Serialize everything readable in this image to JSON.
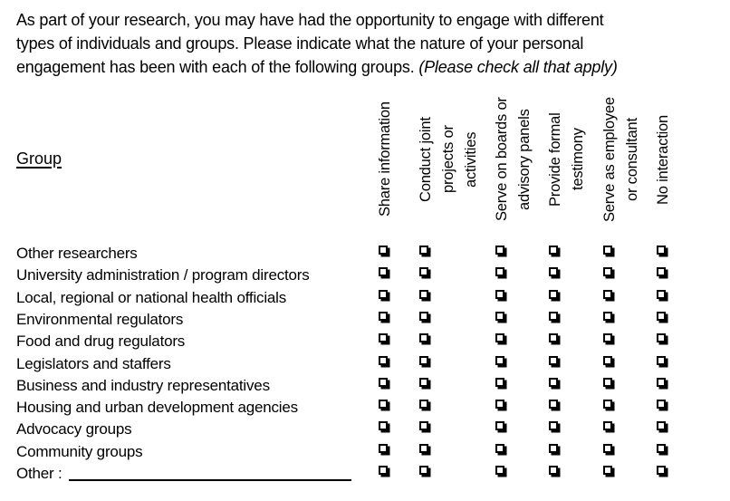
{
  "intro": {
    "line1": "As part of your research, you may have had the opportunity to engage with different",
    "line2": "types of individuals and groups. Please indicate what the nature of your personal",
    "line3_regular": "engagement has been with each of the following groups. ",
    "line3_italic": "(Please check all that apply)"
  },
  "table": {
    "group_header": "Group",
    "columns": [
      {
        "label": "Share information"
      },
      {
        "label": "Conduct joint\nprojects or\nactivities"
      },
      {
        "label": "Serve on boards or\nadvisory panels"
      },
      {
        "label": "Provide formal\ntestimony"
      },
      {
        "label": "Serve as employee\nor consultant"
      },
      {
        "label": "No interaction"
      }
    ],
    "rows": [
      {
        "label": "Other researchers"
      },
      {
        "label": "University administration / program directors"
      },
      {
        "label": "Local, regional or national health officials"
      },
      {
        "label": "Environmental regulators"
      },
      {
        "label": "Food and drug regulators"
      },
      {
        "label": "Legislators and staffers"
      },
      {
        "label": "Business and industry representatives"
      },
      {
        "label": "Housing and urban development agencies"
      },
      {
        "label": "Advocacy groups"
      },
      {
        "label": "Community groups"
      },
      {
        "label": "Other :",
        "has_blank_line": true
      }
    ],
    "checkboxes": {
      "state": "all unchecked"
    }
  },
  "colors": {
    "text": "#000000",
    "background": "#ffffff"
  }
}
